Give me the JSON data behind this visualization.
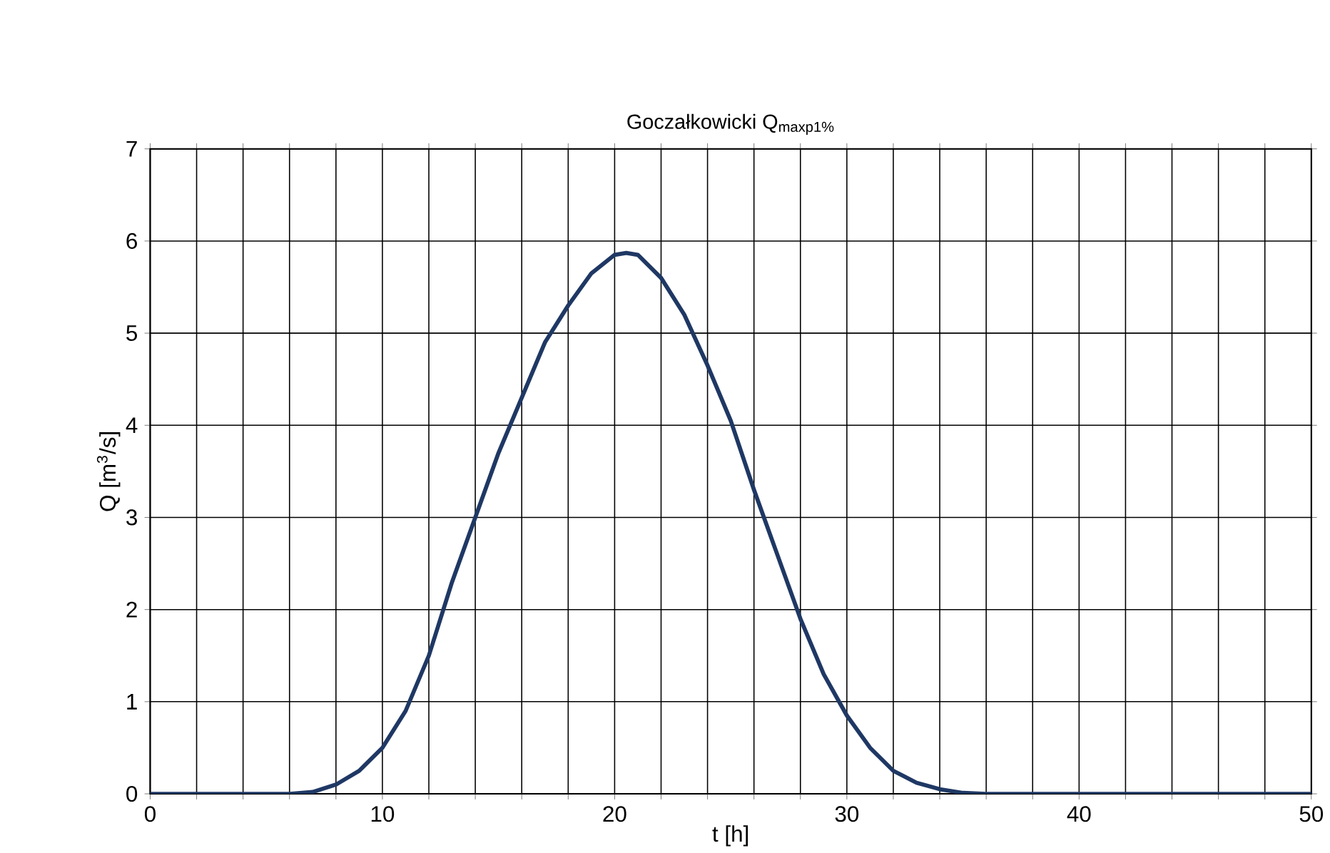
{
  "chart_data": {
    "type": "line",
    "title": "Goczałkowicki Q$_{maxp1%}$",
    "xlabel": "t [h]",
    "ylabel": "Q [m$^{3}$/s]",
    "x": [
      0,
      2,
      4,
      6,
      7,
      8,
      9,
      10,
      11,
      12,
      13,
      14,
      15,
      16,
      17,
      18,
      19,
      20,
      20.5,
      21,
      22,
      23,
      24,
      25,
      26,
      27,
      28,
      29,
      30,
      31,
      32,
      33,
      34,
      35,
      36,
      40,
      45,
      50
    ],
    "series": [
      {
        "color": "#1f3864",
        "values": [
          0,
          0,
          0,
          0,
          0.02,
          0.1,
          0.25,
          0.5,
          0.9,
          1.5,
          2.3,
          3.0,
          3.7,
          4.3,
          4.9,
          5.3,
          5.65,
          5.85,
          5.87,
          5.85,
          5.6,
          5.2,
          4.65,
          4.05,
          3.3,
          2.6,
          1.9,
          1.3,
          0.85,
          0.5,
          0.25,
          0.12,
          0.05,
          0.01,
          0,
          0,
          0,
          0
        ]
      }
    ],
    "xlim": [
      0,
      50
    ],
    "ylim": [
      0,
      7
    ],
    "xticks": [
      0,
      {
        "value": 2,
        "label": null
      },
      {
        "value": 4,
        "label": null
      },
      {
        "value": 6,
        "label": null
      },
      {
        "value": 8,
        "label": null
      },
      10,
      {
        "value": 12,
        "label": null
      },
      {
        "value": 14,
        "label": null
      },
      {
        "value": 16,
        "label": null
      },
      {
        "value": 18,
        "label": null
      },
      20,
      {
        "value": 22,
        "label": null
      },
      {
        "value": 24,
        "label": null
      },
      {
        "value": 26,
        "label": null
      },
      {
        "value": 28,
        "label": null
      },
      30,
      {
        "value": 32,
        "label": null
      },
      {
        "value": 34,
        "label": null
      },
      {
        "value": 36,
        "label": null
      },
      {
        "value": 38,
        "label": null
      },
      40,
      {
        "value": 42,
        "label": null
      },
      {
        "value": 44,
        "label": null
      },
      {
        "value": 46,
        "label": null
      },
      {
        "value": 48,
        "label": null
      },
      50
    ],
    "yticks": [
      0,
      1,
      2,
      3,
      4,
      5,
      6,
      7
    ],
    "grid": true,
    "legend": false,
    "marker": "none",
    "line_style": "solid"
  }
}
